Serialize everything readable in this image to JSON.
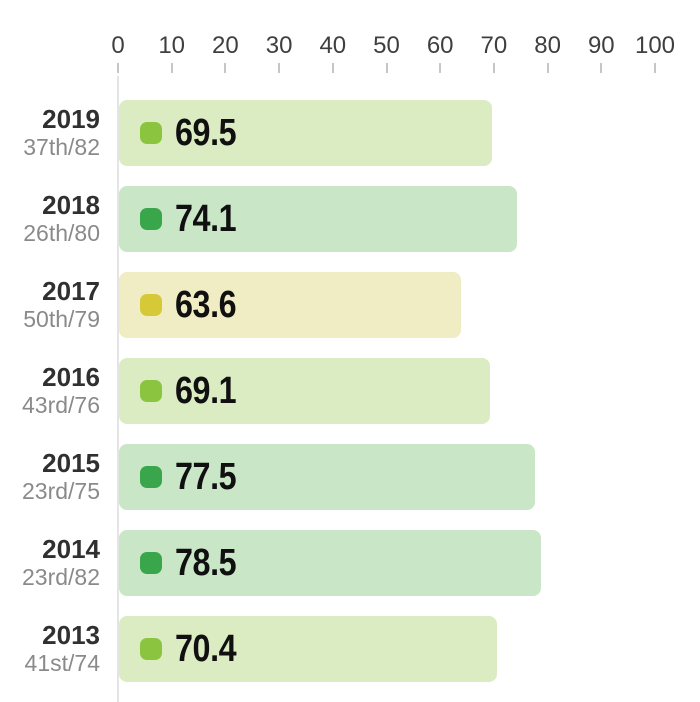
{
  "chart_data": {
    "type": "bar",
    "orientation": "horizontal",
    "title": "",
    "x_axis": {
      "position": "top",
      "min": 0,
      "max": 100,
      "ticks": [
        0,
        10,
        20,
        30,
        40,
        50,
        60,
        70,
        80,
        90,
        100
      ]
    },
    "legend": "none",
    "grid": "zero-line-only",
    "rows": [
      {
        "year": "2019",
        "rank": "37th/82",
        "value": 69.5,
        "tone": "lime"
      },
      {
        "year": "2018",
        "rank": "26th/80",
        "value": 74.1,
        "tone": "green"
      },
      {
        "year": "2017",
        "rank": "50th/79",
        "value": 63.6,
        "tone": "yellow"
      },
      {
        "year": "2016",
        "rank": "43rd/76",
        "value": 69.1,
        "tone": "lime"
      },
      {
        "year": "2015",
        "rank": "23rd/75",
        "value": 77.5,
        "tone": "green"
      },
      {
        "year": "2014",
        "rank": "23rd/82",
        "value": 78.5,
        "tone": "green"
      },
      {
        "year": "2013",
        "rank": "41st/74",
        "value": 70.4,
        "tone": "lime"
      }
    ],
    "colors": {
      "lime": {
        "bar": "#dcecc2",
        "marker": "#8bc43e"
      },
      "green": {
        "bar": "#c9e6c7",
        "marker": "#3aa64b"
      },
      "yellow": {
        "bar": "#f0ecc4",
        "marker": "#d5c938"
      },
      "axis_text": "#3f3f3f",
      "tick_mark": "#c6c6c6",
      "zero_gridline": "#e4e4e4",
      "year_text": "#303030",
      "rank_text": "#8a8a8a",
      "value_text": "#101010"
    }
  }
}
